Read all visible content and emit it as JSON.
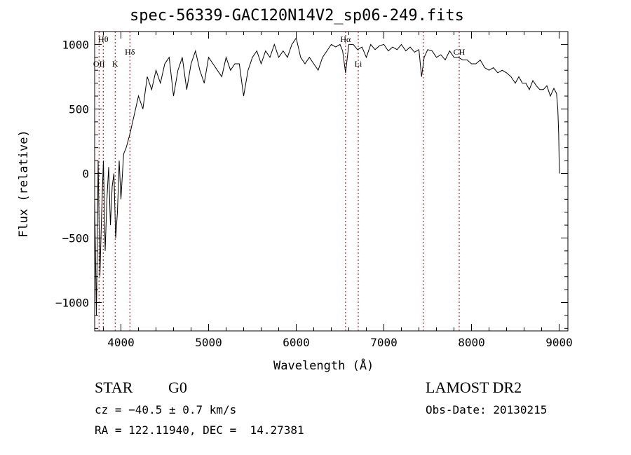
{
  "chart_data": {
    "type": "line",
    "title": "spec-56339-GAC120N14V2_sp06-249.fits",
    "xlabel": "Wavelength (Å)",
    "ylabel": "Flux (relative)",
    "xlim": [
      3700,
      9100
    ],
    "ylim": [
      -1220,
      1100
    ],
    "xticks": [
      4000,
      5000,
      6000,
      7000,
      8000,
      9000
    ],
    "yticks": [
      -1000,
      -500,
      0,
      500,
      1000
    ],
    "xtick_labels": [
      "4000",
      "5000",
      "6000",
      "7000",
      "8000",
      "9000"
    ],
    "ytick_labels": [
      "−1000",
      "−500",
      "0",
      "500",
      "1000"
    ],
    "grid": false,
    "line_color": "#000000",
    "marker_color": "#a00000",
    "series": [
      {
        "x": [
          3700,
          3720,
          3740,
          3760,
          3780,
          3800,
          3820,
          3840,
          3860,
          3880,
          3900,
          3920,
          3940,
          3960,
          3980,
          4000,
          4030,
          4060,
          4100,
          4150,
          4200,
          4250,
          4300,
          4350,
          4400,
          4450,
          4500,
          4550,
          4600,
          4650,
          4700,
          4750,
          4800,
          4850,
          4900,
          4950,
          5000,
          5050,
          5100,
          5150,
          5200,
          5250,
          5300,
          5350,
          5400,
          5450,
          5500,
          5550,
          5600,
          5650,
          5700,
          5750,
          5800,
          5850,
          5900,
          5950,
          6000,
          6050,
          6100,
          6150,
          6200,
          6250,
          6300,
          6350,
          6400,
          6450,
          6500,
          6530,
          6563,
          6600,
          6650,
          6700,
          6750,
          6800,
          6850,
          6900,
          6950,
          7000,
          7050,
          7100,
          7150,
          7200,
          7250,
          7300,
          7350,
          7400,
          7430,
          7460,
          7500,
          7550,
          7600,
          7650,
          7700,
          7750,
          7800,
          7850,
          7900,
          7950,
          8000,
          8050,
          8100,
          8150,
          8200,
          8250,
          8300,
          8350,
          8400,
          8450,
          8500,
          8540,
          8580,
          8620,
          8660,
          8700,
          8740,
          8780,
          8820,
          8860,
          8900,
          8940,
          8970,
          8985,
          8995,
          9000,
          9005
        ],
        "y": [
          -200,
          -1100,
          100,
          -800,
          -300,
          100,
          -600,
          -200,
          50,
          -400,
          -100,
          0,
          -500,
          -300,
          100,
          -200,
          150,
          200,
          300,
          450,
          600,
          500,
          750,
          650,
          800,
          700,
          850,
          900,
          600,
          800,
          900,
          650,
          850,
          950,
          800,
          700,
          900,
          850,
          800,
          750,
          900,
          800,
          850,
          850,
          600,
          800,
          900,
          950,
          850,
          950,
          900,
          1000,
          900,
          950,
          900,
          1000,
          1050,
          900,
          850,
          900,
          850,
          800,
          900,
          950,
          1000,
          980,
          1000,
          950,
          780,
          1000,
          1000,
          960,
          980,
          900,
          1000,
          960,
          990,
          1000,
          950,
          980,
          960,
          1000,
          950,
          980,
          940,
          960,
          750,
          900,
          960,
          950,
          900,
          920,
          880,
          950,
          900,
          900,
          880,
          880,
          850,
          850,
          880,
          820,
          800,
          820,
          780,
          800,
          780,
          750,
          700,
          750,
          700,
          700,
          650,
          720,
          680,
          650,
          650,
          680,
          600,
          660,
          620,
          500,
          300,
          100,
          0
        ]
      }
    ],
    "line_markers": [
      {
        "x": 3750,
        "label": "OII",
        "label_pos": "low"
      },
      {
        "x": 3798,
        "label": "Hθ",
        "label_pos": "top"
      },
      {
        "x": 3934,
        "label": "K",
        "label_pos": "low"
      },
      {
        "x": 4102,
        "label": "Hδ",
        "label_pos": "mid"
      },
      {
        "x": 6563,
        "label": "Hα",
        "label_pos": "top"
      },
      {
        "x": 6708,
        "label": "Li",
        "label_pos": "low"
      },
      {
        "x": 7450,
        "label": "",
        "label_pos": "none"
      },
      {
        "x": 7860,
        "label": "CH",
        "label_pos": "mid"
      }
    ]
  },
  "info": {
    "class": "STAR",
    "subclass": "G0",
    "cz": "cz = −40.5 ± 0.7 km/s",
    "radec": "RA = 122.11940, DEC =  14.27381",
    "survey": "LAMOST DR2",
    "obsdate": "Obs-Date: 20130215"
  }
}
